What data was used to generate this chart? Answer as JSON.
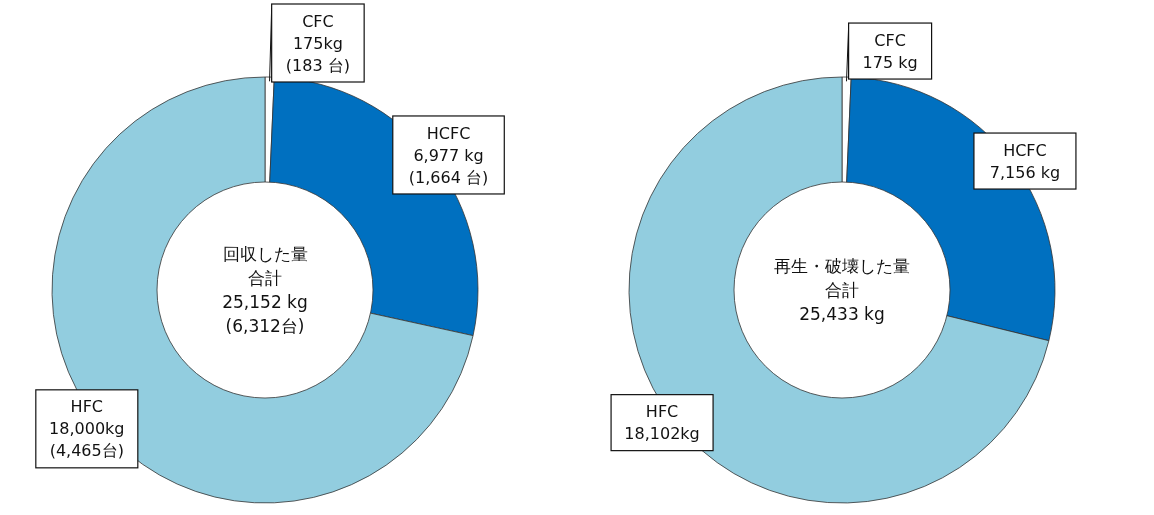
{
  "chart_data": [
    {
      "type": "donut",
      "categories": [
        "CFC",
        "HCFC",
        "HFC"
      ],
      "values": [
        175,
        6977,
        18000
      ],
      "colors": [
        "#ffffff",
        "#0070c0",
        "#92cddf"
      ],
      "value_labels": [
        "175kg\n(183 台)",
        "6,977 kg\n(1,664 台)",
        "18,000kg\n(4,465台)"
      ],
      "annotations": [
        "回収した量",
        "合計",
        "25,152 kg",
        "(6,312台)"
      ]
    },
    {
      "type": "donut",
      "categories": [
        "CFC",
        "HCFC",
        "HFC"
      ],
      "values": [
        175,
        7156,
        18102
      ],
      "colors": [
        "#ffffff",
        "#0070c0",
        "#92cddf"
      ],
      "value_labels": [
        "175 kg",
        "7,156 kg",
        "18,102kg"
      ],
      "annotations": [
        "再生・破壊した量",
        "合計",
        "25,433 kg"
      ]
    }
  ]
}
